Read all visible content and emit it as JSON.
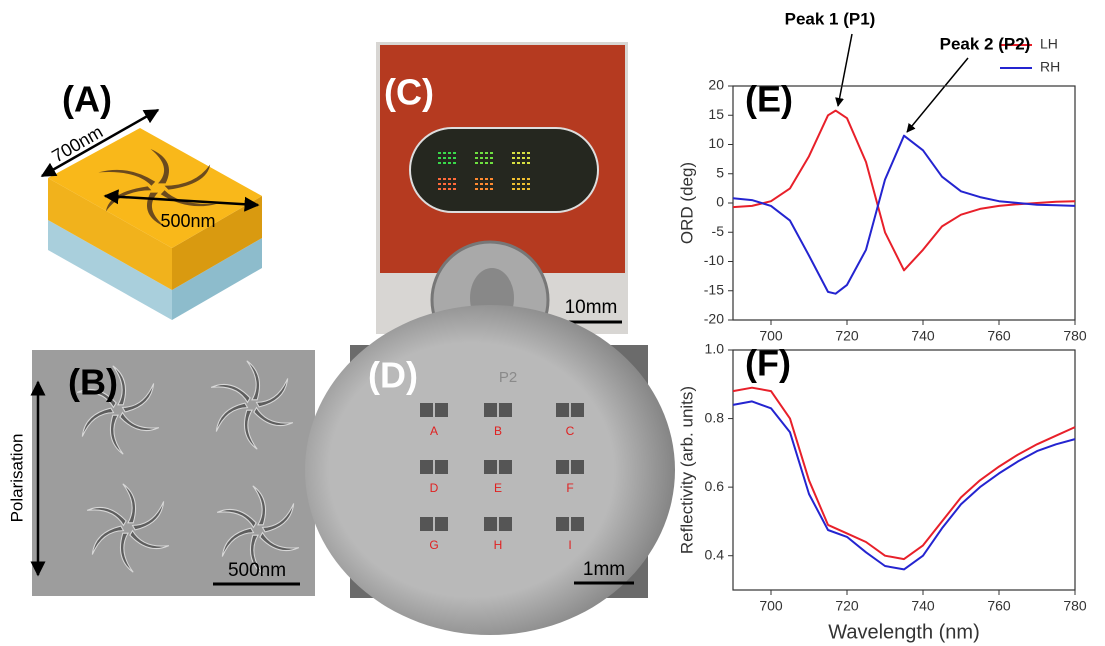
{
  "panels": {
    "a": {
      "label": "(A)",
      "width": "700nm",
      "hole": "500nm"
    },
    "b": {
      "label": "(B)",
      "axis": "Polarisation",
      "scale": "500nm"
    },
    "c": {
      "label": "(C)",
      "scale": "10mm"
    },
    "d": {
      "label": "(D)",
      "marker": "P2",
      "scale": "1mm",
      "sites": [
        "A",
        "B",
        "C",
        "D",
        "E",
        "F",
        "G",
        "H",
        "I"
      ]
    }
  },
  "chart_data": [
    {
      "type": "line",
      "label": "(E)",
      "ylabel": "ORD (deg)",
      "annotations": [
        "Peak 1 (P1)",
        "Peak 2 (P2)"
      ],
      "legend": "top-right",
      "xlim": [
        690,
        780
      ],
      "xticks": [
        700,
        720,
        740,
        760,
        780
      ],
      "ylim": [
        -20,
        20
      ],
      "yticks": [
        -20,
        -15,
        -10,
        -5,
        0,
        5,
        10,
        15,
        20
      ],
      "x": [
        690,
        695,
        700,
        705,
        710,
        715,
        717,
        720,
        725,
        730,
        735,
        740,
        745,
        750,
        755,
        760,
        765,
        770,
        775,
        780
      ],
      "series": [
        {
          "name": "LH",
          "color": "#e8202a",
          "values": [
            -0.7,
            -0.5,
            0.3,
            2.5,
            8,
            15,
            15.8,
            14.5,
            7,
            -5,
            -11.5,
            -8,
            -4,
            -2,
            -1,
            -0.5,
            -0.2,
            0,
            0.2,
            0.3
          ]
        },
        {
          "name": "RH",
          "color": "#2424d0",
          "values": [
            0.8,
            0.5,
            -0.5,
            -3,
            -9,
            -15.2,
            -15.5,
            -14,
            -8,
            4,
            11.5,
            9,
            4.5,
            2,
            1,
            0.3,
            0,
            -0.3,
            -0.4,
            -0.5
          ]
        }
      ]
    },
    {
      "type": "line",
      "label": "(F)",
      "xlabel": "Wavelength (nm)",
      "ylabel": "Reflectivity (arb. units)",
      "xlim": [
        690,
        780
      ],
      "xticks": [
        700,
        720,
        740,
        760,
        780
      ],
      "ylim": [
        0.3,
        1.0
      ],
      "yticks": [
        0.4,
        0.6,
        0.8,
        {
          "value": 1,
          "label": "1.0"
        }
      ],
      "x": [
        690,
        695,
        700,
        705,
        710,
        715,
        720,
        725,
        730,
        735,
        740,
        745,
        750,
        755,
        760,
        765,
        770,
        775,
        780
      ],
      "series": [
        {
          "color": "#e8202a",
          "values": [
            0.88,
            0.89,
            0.88,
            0.8,
            0.62,
            0.49,
            0.465,
            0.44,
            0.4,
            0.39,
            0.43,
            0.5,
            0.57,
            0.62,
            0.66,
            0.695,
            0.725,
            0.75,
            0.775
          ]
        },
        {
          "color": "#2424d0",
          "values": [
            0.84,
            0.85,
            0.83,
            0.76,
            0.58,
            0.475,
            0.455,
            0.41,
            0.37,
            0.36,
            0.4,
            0.48,
            0.55,
            0.6,
            0.64,
            0.675,
            0.705,
            0.725,
            0.74
          ]
        }
      ]
    }
  ]
}
